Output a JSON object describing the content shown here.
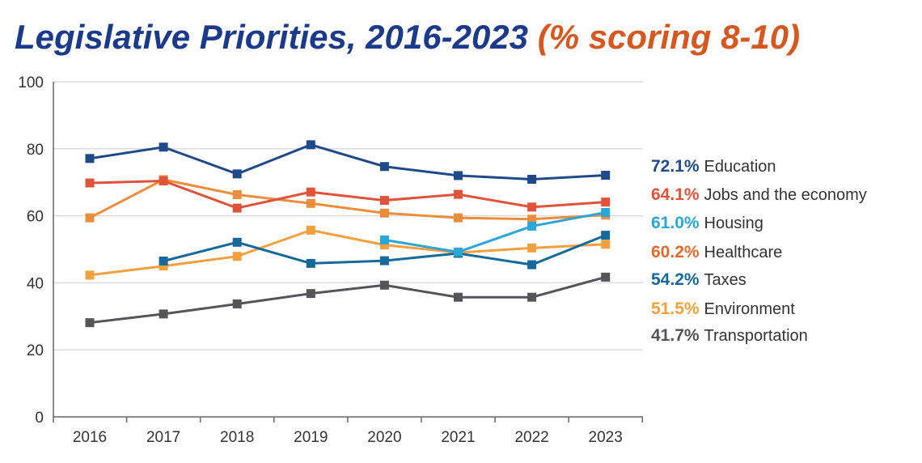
{
  "chart_data": {
    "type": "line",
    "title": "Legislative Priorities, 2016-2023",
    "subtitle": "(% scoring 8-10)",
    "x": [
      "2016",
      "2017",
      "2018",
      "2019",
      "2020",
      "2021",
      "2022",
      "2023"
    ],
    "ylim": [
      0,
      100
    ],
    "yticks": [
      "0",
      "20",
      "40",
      "60",
      "80",
      "100"
    ],
    "grid": true,
    "legend_placement": "right",
    "series": [
      {
        "name": "Education",
        "label_value": "72.1%",
        "color": "#1f4a8a",
        "label_color": "#1f4a8a",
        "values": [
          77.1,
          80.5,
          72.5,
          81.2,
          74.7,
          72.0,
          70.9,
          72.1
        ]
      },
      {
        "name": "Jobs and the economy",
        "label_value": "64.1%",
        "color": "#e0533a",
        "label_color": "#e0533a",
        "values": [
          69.8,
          70.4,
          62.3,
          67.1,
          64.6,
          66.4,
          62.6,
          64.1
        ]
      },
      {
        "name": "Housing",
        "label_value": "61.0%",
        "color": "#2aa6d9",
        "label_color": "#2aa6d9",
        "values": [
          null,
          null,
          null,
          null,
          52.8,
          49.2,
          56.9,
          61.0
        ]
      },
      {
        "name": "Healthcare",
        "label_value": "60.2%",
        "color": "#ec8d3c",
        "label_color": "#e2692a",
        "values": [
          59.4,
          70.8,
          66.3,
          63.7,
          60.8,
          59.4,
          59.0,
          60.2
        ]
      },
      {
        "name": "Taxes",
        "label_value": "54.2%",
        "color": "#15699b",
        "label_color": "#15699b",
        "values": [
          null,
          46.5,
          52.1,
          45.8,
          46.6,
          48.8,
          45.4,
          54.2
        ]
      },
      {
        "name": "Environment",
        "label_value": "51.5%",
        "color": "#f2a03e",
        "label_color": "#f2a03e",
        "values": [
          42.3,
          45.0,
          47.9,
          55.7,
          51.3,
          49.0,
          50.4,
          51.5
        ]
      },
      {
        "name": "Transportation",
        "label_value": "41.7%",
        "color": "#555559",
        "label_color": "#555559",
        "values": [
          28.1,
          30.7,
          33.7,
          36.8,
          39.3,
          35.7,
          35.7,
          41.7
        ]
      }
    ]
  }
}
